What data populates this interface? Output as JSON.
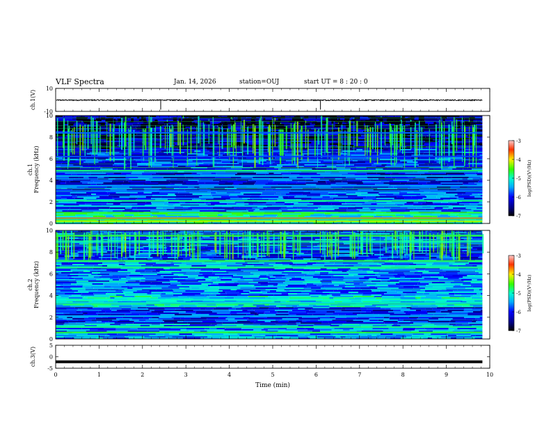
{
  "header": {
    "title": "VLF Spectra",
    "date": "Jan. 14, 2026",
    "station": "station=OUJ",
    "start": "start  UT =   8 : 20 : 0"
  },
  "chart_data": [
    {
      "type": "line",
      "panel": "ch1-voltage",
      "ylabel": "ch.1(V)",
      "ylim": [
        -10,
        10
      ],
      "yticks": [
        "10",
        "-10"
      ],
      "xlim": [
        0,
        10
      ],
      "series": [
        {
          "values_mean": -0.2,
          "spikes_at_min": [
            2.42,
            6.1
          ]
        }
      ]
    },
    {
      "type": "heatmap",
      "panel": "ch1-spectrogram",
      "ylabel": "ch.1\nFrequency (kHz)",
      "ylim": [
        0,
        10
      ],
      "yticks": [
        "0",
        "2",
        "4",
        "6",
        "8",
        "10"
      ],
      "xlim": [
        0,
        10
      ],
      "data_end_min": 9.83,
      "colorbar": {
        "label": "log(PSD)(V²/Hz)",
        "range": [
          -7,
          -3
        ],
        "ticks": [
          "-3",
          "-4",
          "-5",
          "-6",
          "-7"
        ]
      },
      "bands": [
        {
          "freq_khz": 0.2,
          "level": -4.2
        },
        {
          "freq_khz": 0.5,
          "level": -3.4
        },
        {
          "freq_khz": 1.0,
          "level": -4.6
        },
        {
          "freq_khz": 1.6,
          "level": -5.2
        },
        {
          "freq_khz": 2.1,
          "level": -4.8
        },
        {
          "freq_khz": 3.0,
          "level": -5.6
        },
        {
          "freq_khz": 3.5,
          "level": -5.5
        },
        {
          "freq_khz": 4.4,
          "level": -5.4
        },
        {
          "freq_khz": 4.9,
          "level": -4.8
        },
        {
          "freq_khz": 6.2,
          "level": -5.8
        },
        {
          "freq_khz": 8.4,
          "level": -5.7
        }
      ]
    },
    {
      "type": "heatmap",
      "panel": "ch2-spectrogram",
      "ylabel": "ch.2\nFrequency (kHz)",
      "ylim": [
        0,
        10
      ],
      "yticks": [
        "0",
        "2",
        "4",
        "6",
        "8",
        "10"
      ],
      "xlim": [
        0,
        10
      ],
      "data_end_min": 9.83,
      "colorbar": {
        "label": "log(PSD)(V²/Hz)",
        "range": [
          -7,
          -3
        ],
        "ticks": [
          "-3",
          "-4",
          "-5",
          "-6",
          "-7"
        ]
      },
      "bands": [
        {
          "freq_khz": 0.6,
          "level": -4.6
        },
        {
          "freq_khz": 1.1,
          "level": -4.8
        },
        {
          "freq_khz": 2.1,
          "level": -5.4
        },
        {
          "freq_khz": 3.3,
          "level": -5.2
        },
        {
          "freq_khz": 3.6,
          "level": -5.0
        },
        {
          "freq_khz": 6.6,
          "level": -4.8
        },
        {
          "freq_khz": 7.2,
          "level": -4.7
        },
        {
          "freq_khz": 9.0,
          "level": -4.9
        },
        {
          "freq_khz": 9.5,
          "level": -4.6
        }
      ]
    },
    {
      "type": "line",
      "panel": "ch3-voltage",
      "ylabel": "ch.3(V)",
      "ylim": [
        -5,
        5
      ],
      "yticks": [
        "5",
        "0",
        "-5"
      ],
      "xlim": [
        0,
        10
      ],
      "xlabel": "Time (min)",
      "xticks": [
        "0",
        "1",
        "2",
        "3",
        "4",
        "5",
        "6",
        "7",
        "8",
        "9",
        "10"
      ],
      "series": [
        {
          "values_mean": -2.2
        }
      ]
    }
  ],
  "colors": {
    "frame": "#000000",
    "bg": "#ffffff"
  }
}
